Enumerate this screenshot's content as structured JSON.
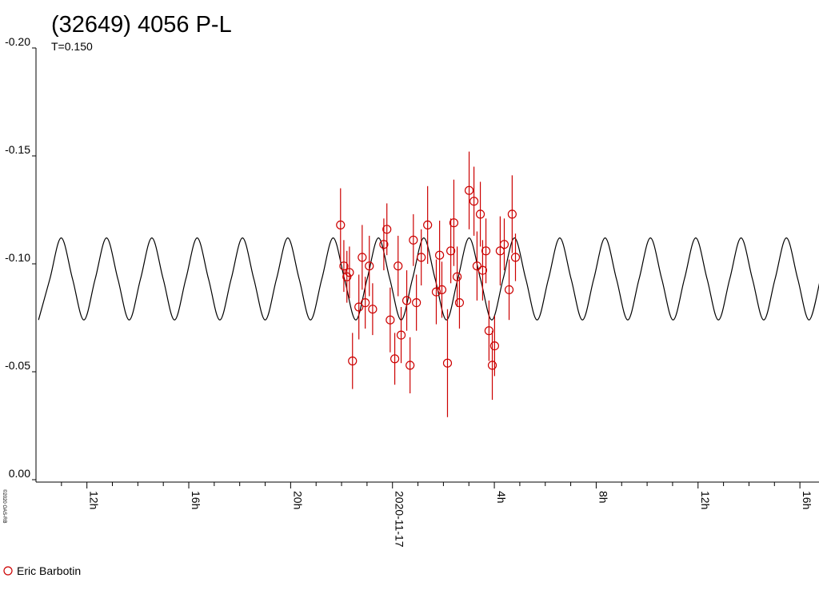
{
  "chart_data": {
    "type": "scatter",
    "title": "(32649) 4056 P-L",
    "subtitle": "T=0.150",
    "credit": "©2020 OAS-RB",
    "xlim": [
      -14,
      16.75
    ],
    "ylim": [
      -0.2,
      0
    ],
    "y_inverted": true,
    "xticks": [
      {
        "value": -12,
        "label": "12h"
      },
      {
        "value": -8,
        "label": "16h"
      },
      {
        "value": -4,
        "label": "20h"
      },
      {
        "value": 0,
        "label": "2020-11-17"
      },
      {
        "value": 4,
        "label": "4h"
      },
      {
        "value": 8,
        "label": "8h"
      },
      {
        "value": 12,
        "label": "12h"
      },
      {
        "value": 16,
        "label": "16h"
      }
    ],
    "xminorticks": [
      -13,
      -11,
      -10,
      -9,
      -7,
      -6,
      -5,
      -3,
      -2,
      -1,
      1,
      2,
      3,
      5,
      6,
      7,
      9,
      10,
      11,
      13,
      14,
      15
    ],
    "yticks": [
      {
        "value": -0.2,
        "label": "-0.20"
      },
      {
        "value": -0.15,
        "label": "-0.15"
      },
      {
        "value": -0.1,
        "label": "-0.10"
      },
      {
        "value": -0.05,
        "label": "-0.05"
      },
      {
        "value": 0,
        "label": "0.00"
      }
    ],
    "curve": {
      "color": "#000000",
      "x": [
        -13.9,
        -13.455,
        -13.01,
        -12.565,
        -12.12,
        -11.675,
        -11.23,
        -10.785,
        -10.34,
        -9.895,
        -9.45,
        -9.005,
        -8.56,
        -8.115,
        -7.67,
        -7.225,
        -6.78,
        -6.335,
        -5.89,
        -5.445,
        -5,
        -4.555,
        -4.11,
        -3.665,
        -3.22,
        -2.775,
        -2.33,
        -1.885,
        -1.44,
        -0.995,
        -0.55,
        -0.105,
        0.34,
        0.785,
        1.23,
        1.675,
        2.12,
        2.565,
        3.01,
        3.455,
        3.9,
        4.345,
        4.79,
        5.235,
        5.68,
        6.125,
        6.57,
        7.015,
        7.46,
        7.905,
        8.35,
        8.795,
        9.24,
        9.685,
        10.13,
        10.575,
        11.02,
        11.465,
        11.91,
        12.355,
        12.8,
        13.245,
        13.69,
        14.135,
        14.58,
        15.025,
        15.47,
        15.915,
        16.36,
        16.805
      ],
      "values": [
        -0.074,
        -0.093,
        -0.112,
        -0.093,
        -0.074,
        -0.093,
        -0.112,
        -0.093,
        -0.074,
        -0.093,
        -0.112,
        -0.093,
        -0.074,
        -0.093,
        -0.112,
        -0.093,
        -0.074,
        -0.093,
        -0.112,
        -0.093,
        -0.074,
        -0.093,
        -0.112,
        -0.093,
        -0.074,
        -0.093,
        -0.112,
        -0.093,
        -0.074,
        -0.093,
        -0.112,
        -0.093,
        -0.074,
        -0.093,
        -0.112,
        -0.093,
        -0.074,
        -0.093,
        -0.112,
        -0.093,
        -0.074,
        -0.093,
        -0.112,
        -0.093,
        -0.074,
        -0.093,
        -0.112,
        -0.093,
        -0.074,
        -0.093,
        -0.112,
        -0.093,
        -0.074,
        -0.093,
        -0.112,
        -0.093,
        -0.074,
        -0.093,
        -0.112,
        -0.093,
        -0.074,
        -0.093,
        -0.112,
        -0.093,
        -0.074,
        -0.093,
        -0.112,
        -0.093,
        -0.074,
        -0.093
      ]
    },
    "series": [
      {
        "name": "Eric Barbotin",
        "color": "#cc0000",
        "x": [
          -2.04,
          -1.91,
          -1.79,
          -1.69,
          -1.57,
          -1.32,
          -1.19,
          -1.07,
          -0.91,
          -0.78,
          -0.34,
          -0.22,
          -0.09,
          0.09,
          0.22,
          0.34,
          0.56,
          0.69,
          0.82,
          0.94,
          1.13,
          1.38,
          1.72,
          1.85,
          1.94,
          2.16,
          2.29,
          2.41,
          2.54,
          2.63,
          3.01,
          3.2,
          3.32,
          3.45,
          3.54,
          3.67,
          3.79,
          3.92,
          4.01,
          4.23,
          4.39,
          4.58,
          4.7,
          4.83
        ],
        "values": [
          -0.118,
          -0.099,
          -0.094,
          -0.096,
          -0.055,
          -0.08,
          -0.103,
          -0.082,
          -0.099,
          -0.079,
          -0.109,
          -0.116,
          -0.074,
          -0.056,
          -0.099,
          -0.067,
          -0.083,
          -0.053,
          -0.111,
          -0.082,
          -0.103,
          -0.118,
          -0.087,
          -0.104,
          -0.088,
          -0.054,
          -0.106,
          -0.119,
          -0.094,
          -0.082,
          -0.134,
          -0.129,
          -0.099,
          -0.123,
          -0.097,
          -0.106,
          -0.069,
          -0.053,
          -0.062,
          -0.106,
          -0.109,
          -0.088,
          -0.123,
          -0.103
        ],
        "errors": [
          0.017,
          0.012,
          0.012,
          0.012,
          0.013,
          0.015,
          0.015,
          0.012,
          0.014,
          0.012,
          0.012,
          0.012,
          0.015,
          0.012,
          0.014,
          0.013,
          0.014,
          0.013,
          0.012,
          0.013,
          0.013,
          0.018,
          0.015,
          0.016,
          0.013,
          0.025,
          0.015,
          0.02,
          0.014,
          0.012,
          0.018,
          0.016,
          0.016,
          0.015,
          0.014,
          0.015,
          0.014,
          0.016,
          0.014,
          0.016,
          0.012,
          0.014,
          0.018,
          0.011
        ]
      }
    ]
  }
}
